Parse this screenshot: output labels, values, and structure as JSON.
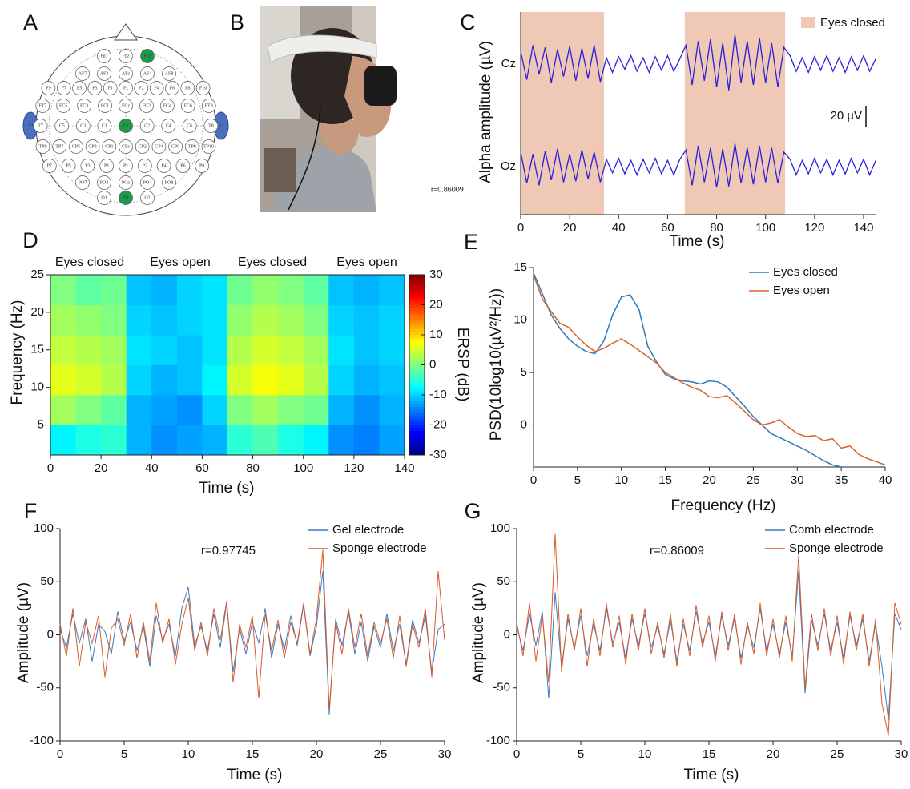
{
  "panel_labels": [
    "A",
    "B",
    "C",
    "D",
    "E",
    "F",
    "G"
  ],
  "head_diagram": {
    "rows": [
      [
        "Fp1",
        "Fpz",
        "Fp2"
      ],
      [
        "AF7",
        "AF3",
        "AFz",
        "AF4",
        "AF8"
      ],
      [
        "F9",
        "F7",
        "F5",
        "F3",
        "F1",
        "Fz",
        "F2",
        "F4",
        "F6",
        "F8",
        "F10"
      ],
      [
        "FT7",
        "FC5",
        "FC3",
        "FC1",
        "FCz",
        "FC2",
        "FC4",
        "FC6",
        "FT8"
      ],
      [
        "T7",
        "C5",
        "C3",
        "C1",
        "Cz",
        "C2",
        "C4",
        "C6",
        "T8"
      ],
      [
        "TP9",
        "TP7",
        "CP5",
        "CP3",
        "CP1",
        "CPz",
        "CP2",
        "CP4",
        "CP6",
        "TP8",
        "TP10"
      ],
      [
        "P7",
        "P5",
        "P3",
        "P1",
        "Pz",
        "P2",
        "P4",
        "P6",
        "P8"
      ],
      [
        "PO7",
        "PO3",
        "POz",
        "PO4",
        "PO8"
      ],
      [
        "O1",
        "Oz",
        "O2"
      ]
    ],
    "ears": [
      "A1",
      "A2"
    ],
    "highlighted": [
      "Fp2",
      "Cz",
      "Oz"
    ]
  },
  "photo": {
    "caption": "r=0.86009"
  },
  "chart_data": [
    {
      "type": "line",
      "x_label": "Time (s)",
      "y_label": "Alpha amplitude (µV)",
      "xlim": [
        0,
        145
      ],
      "xticks": [
        0,
        20,
        40,
        60,
        80,
        100,
        120,
        140
      ],
      "x": [
        0,
        2.5,
        5,
        7.5,
        10,
        12.5,
        15,
        17.5,
        20,
        22.5,
        25,
        27.5,
        30,
        32.5,
        35,
        37.5,
        40,
        42.5,
        45,
        47.5,
        50,
        52.5,
        55,
        57.5,
        60,
        62.5,
        65,
        67.5,
        70,
        72.5,
        75,
        77.5,
        80,
        82.5,
        85,
        87.5,
        90,
        92.5,
        95,
        97.5,
        100,
        102.5,
        105,
        107.5,
        110,
        112.5,
        115,
        117.5,
        120,
        122.5,
        125,
        127.5,
        130,
        132.5,
        135,
        137.5,
        140,
        142.5,
        145
      ],
      "series": [
        {
          "name": "Cz",
          "color": "#2a1fd8",
          "values": [
            12,
            -15,
            18,
            -10,
            16,
            -18,
            14,
            -12,
            17,
            -16,
            15,
            -14,
            18,
            -17,
            6,
            -8,
            7,
            -5,
            8,
            -7,
            6,
            -8,
            7,
            -6,
            8,
            -7,
            5,
            18,
            -20,
            22,
            -16,
            24,
            -22,
            20,
            -25,
            28,
            -18,
            22,
            -20,
            25,
            -18,
            20,
            -22,
            16,
            8,
            -7,
            6,
            -8,
            7,
            -6,
            8,
            -7,
            6,
            -8,
            7,
            -6,
            8,
            -7,
            5
          ]
        },
        {
          "name": "Oz",
          "color": "#2a1fd8",
          "values": [
            14,
            -16,
            12,
            -18,
            15,
            -13,
            17,
            -15,
            12,
            -14,
            16,
            -12,
            14,
            -15,
            7,
            -6,
            8,
            -7,
            6,
            -8,
            7,
            -6,
            8,
            -7,
            6,
            -8,
            7,
            16,
            -18,
            20,
            -15,
            18,
            -20,
            17,
            -19,
            22,
            -16,
            18,
            -17,
            20,
            -15,
            18,
            -16,
            14,
            7,
            -8,
            6,
            -7,
            8,
            -6,
            7,
            -8,
            6,
            -7,
            8,
            -6,
            7,
            -8,
            6
          ]
        }
      ],
      "shaded_regions": [
        [
          0,
          34
        ],
        [
          67,
          108
        ]
      ],
      "shade_color": "#f0c8b6",
      "shade_label": "Eyes closed",
      "scale_bar": {
        "value": 20,
        "label": "20 µV"
      }
    },
    {
      "type": "heatmap",
      "x_label": "Time (s)",
      "y_label": "Frequency (Hz)",
      "colorbar_label": "ERSP (dB)",
      "annotations": [
        "Eyes closed",
        "Eyes open",
        "Eyes closed",
        "Eyes open"
      ],
      "xlim": [
        0,
        140
      ],
      "ylim": [
        1,
        25
      ],
      "xticks": [
        0,
        20,
        40,
        60,
        80,
        100,
        120,
        140
      ],
      "yticks": [
        5,
        10,
        15,
        20,
        25
      ],
      "clim": [
        -30,
        30
      ],
      "cticks": [
        -30,
        -20,
        -10,
        0,
        10,
        20,
        30
      ],
      "colormap": "jet",
      "x": [
        5,
        15,
        25,
        35,
        45,
        55,
        65,
        75,
        85,
        95,
        105,
        115,
        125,
        135
      ],
      "y": [
        3,
        7,
        11,
        15,
        19,
        23
      ],
      "z": [
        [
          -8,
          -6,
          -5,
          -12,
          -14,
          -13,
          -12,
          -5,
          -3,
          -6,
          -8,
          -14,
          -15,
          -13
        ],
        [
          2,
          0,
          -2,
          -12,
          -13,
          -14,
          -10,
          0,
          2,
          0,
          -1,
          -12,
          -14,
          -12
        ],
        [
          6,
          5,
          3,
          -10,
          -12,
          -11,
          -8,
          5,
          7,
          6,
          3,
          -10,
          -12,
          -11
        ],
        [
          4,
          3,
          2,
          -9,
          -10,
          -11,
          -9,
          3,
          5,
          4,
          2,
          -9,
          -11,
          -10
        ],
        [
          2,
          1,
          0,
          -10,
          -11,
          -10,
          -9,
          1,
          3,
          2,
          0,
          -10,
          -11,
          -10
        ],
        [
          0,
          -2,
          -1,
          -11,
          -12,
          -10,
          -9,
          -1,
          1,
          0,
          -2,
          -11,
          -12,
          -11
        ]
      ]
    },
    {
      "type": "line",
      "x_label": "Frequency (Hz)",
      "y_label": "PSD(10log10(µV²/Hz))",
      "xlim": [
        0,
        40
      ],
      "ylim": [
        -4,
        15
      ],
      "xticks": [
        0,
        5,
        10,
        15,
        20,
        25,
        30,
        35,
        40
      ],
      "yticks": [
        0,
        5,
        10,
        15
      ],
      "x": [
        0,
        1,
        2,
        3,
        4,
        5,
        6,
        7,
        8,
        9,
        10,
        11,
        12,
        13,
        14,
        15,
        16,
        17,
        18,
        19,
        20,
        21,
        22,
        23,
        24,
        25,
        26,
        27,
        28,
        29,
        30,
        31,
        32,
        33,
        34,
        35,
        36,
        37,
        38,
        39,
        40
      ],
      "series": [
        {
          "name": "Eyes closed",
          "color": "#2b7bba",
          "values": [
            14.5,
            12.5,
            10.5,
            9.2,
            8.2,
            7.5,
            7.0,
            6.8,
            8.0,
            10.5,
            12.2,
            12.4,
            11.0,
            7.5,
            6.0,
            4.8,
            4.4,
            4.2,
            4.1,
            3.9,
            4.2,
            4.1,
            3.6,
            2.7,
            1.8,
            0.8,
            0.0,
            -0.8,
            -1.2,
            -1.6,
            -2.0,
            -2.4,
            -2.9,
            -3.4,
            -3.8,
            -4.0,
            null,
            null,
            null,
            null,
            null
          ]
        },
        {
          "name": "Eyes open",
          "color": "#d9622b",
          "values": [
            14.3,
            12.0,
            10.8,
            9.7,
            9.3,
            8.4,
            7.6,
            7.0,
            7.3,
            7.8,
            8.2,
            7.7,
            7.1,
            6.5,
            5.9,
            5.0,
            4.5,
            4.0,
            3.6,
            3.3,
            2.7,
            2.6,
            2.8,
            2.1,
            1.3,
            0.5,
            0.0,
            0.2,
            0.5,
            -0.2,
            -0.8,
            -1.1,
            -1.0,
            -1.5,
            -1.3,
            -2.2,
            -2.0,
            -2.8,
            -3.2,
            -3.5,
            -3.8
          ]
        }
      ]
    },
    {
      "type": "line",
      "x_label": "Time (s)",
      "y_label": "Amplitude (µV)",
      "annotation": "r=0.97745",
      "xlim": [
        0,
        30
      ],
      "ylim": [
        -100,
        100
      ],
      "xticks": [
        0,
        5,
        10,
        15,
        20,
        25,
        30
      ],
      "yticks": [
        -100,
        -50,
        0,
        50,
        100
      ],
      "x": [
        0,
        0.5,
        1,
        1.5,
        2,
        2.5,
        3,
        3.5,
        4,
        4.5,
        5,
        5.5,
        6,
        6.5,
        7,
        7.5,
        8,
        8.5,
        9,
        9.5,
        10,
        10.5,
        11,
        11.5,
        12,
        12.5,
        13,
        13.5,
        14,
        14.5,
        15,
        15.5,
        16,
        16.5,
        17,
        17.5,
        18,
        18.5,
        19,
        19.5,
        20,
        20.5,
        21,
        21.5,
        22,
        22.5,
        23,
        23.5,
        24,
        24.5,
        25,
        25.5,
        26,
        26.5,
        27,
        27.5,
        28,
        28.5,
        29,
        29.5,
        30
      ],
      "series": [
        {
          "name": "Gel electrode",
          "color": "#3b7bbf",
          "values": [
            5,
            -12,
            20,
            -8,
            15,
            -25,
            10,
            3,
            -18,
            22,
            -6,
            12,
            -15,
            8,
            -30,
            18,
            -5,
            10,
            -20,
            25,
            45,
            -10,
            8,
            -15,
            20,
            -12,
            30,
            -35,
            6,
            -18,
            12,
            -8,
            25,
            -22,
            10,
            -14,
            18,
            -10,
            28,
            -20,
            8,
            60,
            -75,
            15,
            -10,
            22,
            -18,
            12,
            -25,
            8,
            -12,
            20,
            -15,
            10,
            -28,
            14,
            -8,
            18,
            -35,
            5,
            10
          ]
        },
        {
          "name": "Sponge electrode",
          "color": "#d95a2b",
          "values": [
            10,
            -20,
            25,
            -30,
            12,
            -8,
            18,
            -40,
            6,
            15,
            -10,
            20,
            -22,
            12,
            -25,
            30,
            -8,
            15,
            -28,
            10,
            35,
            -15,
            12,
            -20,
            25,
            -5,
            32,
            -45,
            10,
            -12,
            18,
            -60,
            20,
            -15,
            14,
            -22,
            12,
            -8,
            30,
            -18,
            15,
            80,
            -70,
            12,
            -18,
            25,
            -12,
            20,
            -20,
            12,
            -8,
            15,
            -22,
            18,
            -30,
            10,
            -12,
            25,
            -40,
            60,
            -5
          ]
        }
      ]
    },
    {
      "type": "line",
      "x_label": "Time (s)",
      "y_label": "Amplitude (µV)",
      "annotation": "r=0.86009",
      "xlim": [
        0,
        30
      ],
      "ylim": [
        -100,
        100
      ],
      "xticks": [
        0,
        5,
        10,
        15,
        20,
        25,
        30
      ],
      "yticks": [
        -100,
        -50,
        0,
        50,
        100
      ],
      "x": [
        0,
        0.5,
        1,
        1.5,
        2,
        2.5,
        3,
        3.5,
        4,
        4.5,
        5,
        5.5,
        6,
        6.5,
        7,
        7.5,
        8,
        8.5,
        9,
        9.5,
        10,
        10.5,
        11,
        11.5,
        12,
        12.5,
        13,
        13.5,
        14,
        14.5,
        15,
        15.5,
        16,
        16.5,
        17,
        17.5,
        18,
        18.5,
        19,
        19.5,
        20,
        20.5,
        21,
        21.5,
        22,
        22.5,
        23,
        23.5,
        24,
        24.5,
        25,
        25.5,
        26,
        26.5,
        27,
        27.5,
        28,
        28.5,
        29,
        29.5,
        30
      ],
      "series": [
        {
          "name": "Comb electrode",
          "color": "#3b7bbf",
          "values": [
            8,
            -15,
            20,
            -10,
            22,
            -60,
            40,
            -30,
            15,
            -12,
            18,
            -20,
            10,
            -15,
            25,
            -8,
            12,
            -22,
            15,
            -10,
            20,
            -12,
            8,
            -18,
            14,
            -25,
            10,
            -15,
            22,
            -8,
            12,
            -20,
            18,
            -10,
            15,
            -22,
            8,
            -12,
            25,
            -15,
            10,
            -18,
            12,
            -20,
            60,
            -55,
            14,
            -10,
            20,
            -15,
            12,
            -22,
            18,
            -10,
            15,
            -25,
            10,
            -30,
            -80,
            20,
            5
          ]
        },
        {
          "name": "Sponge electrode",
          "color": "#d95a2b",
          "values": [
            12,
            -20,
            30,
            -25,
            18,
            -45,
            95,
            -35,
            20,
            -15,
            25,
            -30,
            15,
            -20,
            30,
            -12,
            18,
            -28,
            20,
            -15,
            25,
            -18,
            12,
            -22,
            20,
            -30,
            15,
            -20,
            28,
            -12,
            18,
            -25,
            22,
            -15,
            20,
            -28,
            12,
            -18,
            30,
            -20,
            15,
            -22,
            18,
            -25,
            75,
            -50,
            20,
            -15,
            25,
            -20,
            18,
            -28,
            22,
            -15,
            20,
            -30,
            15,
            -65,
            -95,
            30,
            10
          ]
        }
      ]
    }
  ]
}
